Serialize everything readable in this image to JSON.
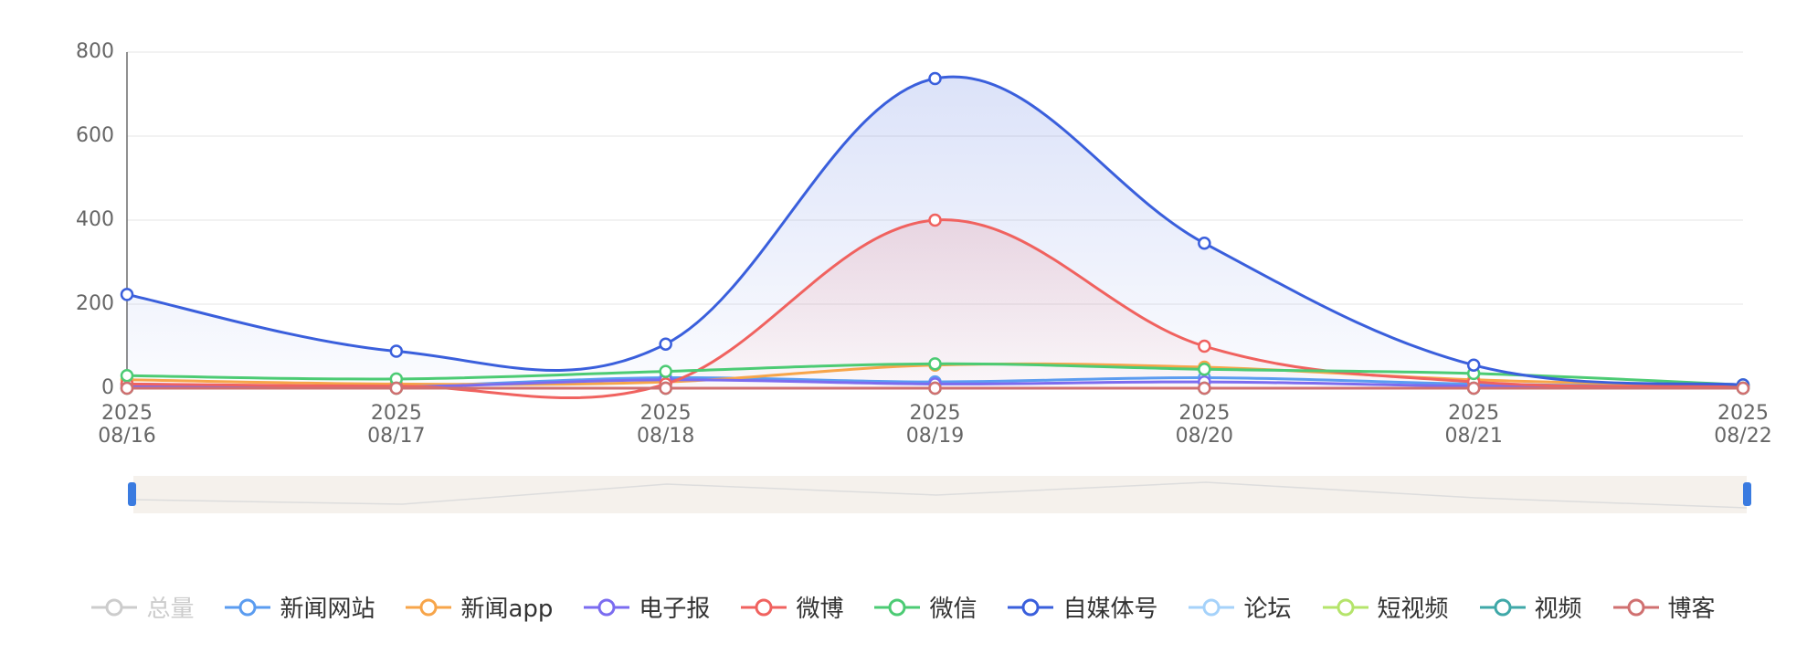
{
  "chart_data": {
    "type": "line",
    "categories": [
      "2025\n08/16",
      "2025\n08/17",
      "2025\n08/18",
      "2025\n08/19",
      "2025\n08/20",
      "2025\n08/21",
      "2025\n08/22"
    ],
    "ylim": [
      0,
      800
    ],
    "yticks": [
      0,
      200,
      400,
      600,
      800
    ],
    "grid": true,
    "smooth": true,
    "legend": "bottom",
    "series": [
      {
        "name": "总量",
        "color": "#cccccc",
        "hidden": true,
        "values": [
          null,
          null,
          null,
          null,
          null,
          null,
          null
        ]
      },
      {
        "name": "新闻网站",
        "color": "#5b9cf0",
        "values": [
          10,
          5,
          25,
          15,
          25,
          10,
          3
        ]
      },
      {
        "name": "新闻app",
        "color": "#f7a54a",
        "values": [
          20,
          10,
          15,
          55,
          50,
          20,
          5
        ]
      },
      {
        "name": "电子报",
        "color": "#7b6cf0",
        "values": [
          5,
          3,
          20,
          10,
          15,
          5,
          2
        ]
      },
      {
        "name": "微博",
        "color": "#f0625f",
        "area": true,
        "values": [
          10,
          5,
          10,
          400,
          100,
          15,
          5
        ]
      },
      {
        "name": "微信",
        "color": "#4ccb74",
        "values": [
          30,
          22,
          40,
          58,
          45,
          35,
          8
        ]
      },
      {
        "name": "自媒体号",
        "color": "#3a5fdc",
        "area": true,
        "values": [
          223,
          88,
          105,
          737,
          345,
          55,
          8
        ]
      },
      {
        "name": "论坛",
        "color": "#a5d2fa",
        "values": [
          0,
          0,
          0,
          0,
          0,
          0,
          0
        ]
      },
      {
        "name": "短视频",
        "color": "#b5e46b",
        "values": [
          0,
          0,
          0,
          0,
          0,
          0,
          0
        ]
      },
      {
        "name": "视频",
        "color": "#3fa8a8",
        "values": [
          0,
          0,
          0,
          0,
          0,
          0,
          0
        ]
      },
      {
        "name": "博客",
        "color": "#d07070",
        "values": [
          0,
          0,
          0,
          0,
          0,
          0,
          0
        ]
      }
    ]
  }
}
